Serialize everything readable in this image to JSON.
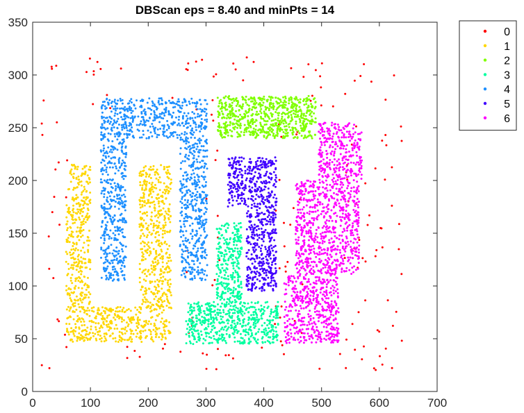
{
  "chart_data": {
    "type": "scatter",
    "title": "DBScan eps = 8.40 and minPts = 14",
    "xlabel": "",
    "ylabel": "",
    "xlim": [
      0,
      700
    ],
    "ylim": [
      0,
      350
    ],
    "xticks": [
      0,
      100,
      200,
      300,
      400,
      500,
      600,
      700
    ],
    "yticks": [
      0,
      50,
      100,
      150,
      200,
      250,
      300,
      350
    ],
    "grid": false,
    "legend_position": "outside-top-right",
    "series": [
      {
        "name": "0",
        "color": "#ff0000",
        "count": 180,
        "regions": [
          {
            "x": [
              15,
              60
            ],
            "y": [
              20,
              320
            ]
          },
          {
            "x": [
              60,
              160
            ],
            "y": [
              260,
              320
            ]
          },
          {
            "x": [
              230,
              330
            ],
            "y": [
              250,
              320
            ]
          },
          {
            "x": [
              330,
              520
            ],
            "y": [
              285,
              320
            ]
          },
          {
            "x": [
              460,
              520
            ],
            "y": [
              270,
              320
            ]
          },
          {
            "x": [
              530,
              640
            ],
            "y": [
              20,
              320
            ]
          },
          {
            "x": [
              250,
              280
            ],
            "y": [
              50,
              160
            ]
          },
          {
            "x": [
              410,
              470
            ],
            "y": [
              30,
              280
            ]
          },
          {
            "x": [
              60,
              640
            ],
            "y": [
              20,
              45
            ]
          },
          {
            "x": [
              300,
              330
            ],
            "y": [
              100,
              250
            ]
          }
        ]
      },
      {
        "name": "1",
        "color": "#ffd700",
        "count": 1250,
        "regions": [
          {
            "x": [
              58,
              100
            ],
            "y": [
              47,
              215
            ]
          },
          {
            "x": [
              100,
              240
            ],
            "y": [
              47,
              80
            ]
          },
          {
            "x": [
              185,
              240
            ],
            "y": [
              80,
              215
            ]
          }
        ]
      },
      {
        "name": "2",
        "color": "#80ff00",
        "count": 700,
        "regions": [
          {
            "x": [
              320,
              490
            ],
            "y": [
              240,
              280
            ]
          }
        ]
      },
      {
        "name": "3",
        "color": "#00ffa0",
        "count": 850,
        "regions": [
          {
            "x": [
              265,
              425
            ],
            "y": [
              45,
              85
            ]
          },
          {
            "x": [
              318,
              362
            ],
            "y": [
              85,
              160
            ]
          }
        ]
      },
      {
        "name": "4",
        "color": "#1e90ff",
        "count": 1350,
        "regions": [
          {
            "x": [
              118,
              302
            ],
            "y": [
              240,
              278
            ]
          },
          {
            "x": [
              118,
              162
            ],
            "y": [
              105,
              240
            ]
          },
          {
            "x": [
              255,
              302
            ],
            "y": [
              105,
              240
            ]
          }
        ]
      },
      {
        "name": "5",
        "color": "#4000ff",
        "count": 700,
        "regions": [
          {
            "x": [
              338,
              422
            ],
            "y": [
              175,
              222
            ]
          },
          {
            "x": [
              370,
              422
            ],
            "y": [
              95,
              175
            ]
          }
        ]
      },
      {
        "name": "6",
        "color": "#ff00ff",
        "count": 1500,
        "regions": [
          {
            "x": [
              435,
              530
            ],
            "y": [
              45,
              110
            ]
          },
          {
            "x": [
              455,
              565
            ],
            "y": [
              110,
              200
            ]
          },
          {
            "x": [
              495,
              570
            ],
            "y": [
              200,
              255
            ]
          }
        ]
      }
    ]
  }
}
